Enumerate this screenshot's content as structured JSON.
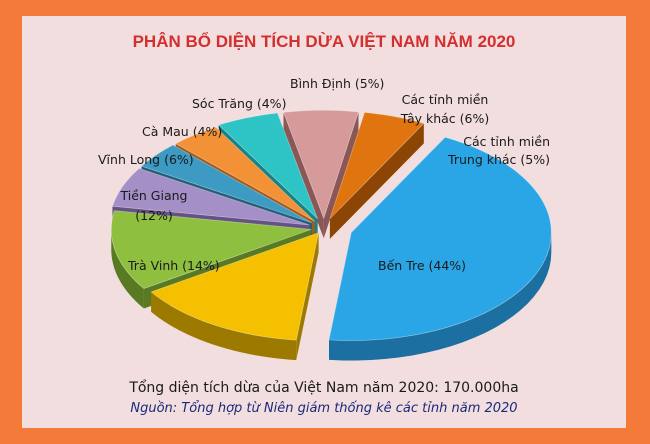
{
  "chart_data": {
    "type": "pie",
    "title": "PHÂN BỔ DIỆN TÍCH DỪA VIỆT NAM NĂM 2020",
    "slices": [
      {
        "label": "Bến Tre (44%)",
        "value": 44,
        "color": "#2aa6e6",
        "side": "#1b6fa1"
      },
      {
        "label": "Trà Vinh (14%)",
        "value": 14,
        "color": "#f5c000",
        "side": "#9c7a00"
      },
      {
        "label": "Tiền Giang",
        "label2": "(12%)",
        "value": 12,
        "color": "#8fbf3f",
        "side": "#587a22"
      },
      {
        "label": "Vĩnh Long (6%)",
        "value": 6,
        "color": "#a58fc7",
        "side": "#645283"
      },
      {
        "label": "Cà Mau (4%)",
        "value": 4,
        "color": "#3d9ac2",
        "side": "#245f7a"
      },
      {
        "label": "Sóc Trăng (4%)",
        "value": 4,
        "color": "#f29135",
        "side": "#a35a17"
      },
      {
        "label": "Bình Định (5%)",
        "value": 5,
        "color": "#2ec4c6",
        "side": "#198284"
      },
      {
        "label": "Các tỉnh miền",
        "label2": "Tây khác (6%)",
        "value": 6,
        "color": "#d79a9a",
        "side": "#8a5656"
      },
      {
        "label": "Các tỉnh miền",
        "label2": "Trung khác (5%)",
        "value": 5,
        "color": "#e0740f",
        "side": "#8d4506"
      }
    ]
  },
  "footer": {
    "total": "Tổng diện tích dừa của Việt Nam năm 2020: 170.000ha",
    "source": "Nguồn: Tổng hợp từ Niên giám thống kê các tỉnh năm 2020"
  }
}
